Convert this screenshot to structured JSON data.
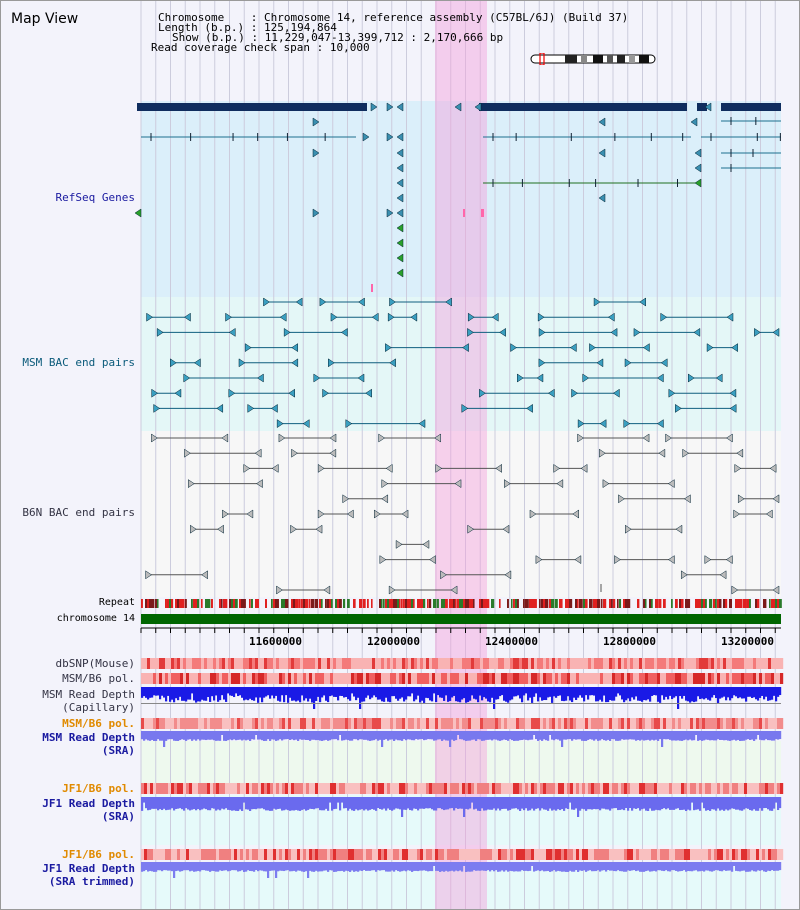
{
  "view_title": "Map View",
  "info": {
    "chromosome_label": "Chromosome",
    "chromosome_value": "Chromosome 14, reference assembly (C57BL/6J) (Build 37)",
    "length_label": "Length (b.p.)",
    "length_value": "125,194,864",
    "show_label": "Show (b.p.)",
    "show_value": "11,229,047-13,399,712 : 2,170,666 bp",
    "coverage_label": "Read coverage check span",
    "coverage_value": "10,000"
  },
  "tracks": {
    "refseq": "RefSeq Genes",
    "msm_bac": "MSM BAC end pairs",
    "b6n_bac": "B6N BAC end pairs",
    "repeat": "Repeat",
    "chromosome": "chromosome 14",
    "dbsnp": "dbSNP(Mouse)",
    "msm_b6_pol": "MSM/B6 pol.",
    "msm_read_depth_cap_1": "MSM Read Depth",
    "msm_read_depth_cap_2": "(Capillary)",
    "msm_b6_pol_sra": "MSM/B6 pol.",
    "msm_read_depth_sra_1": "MSM Read Depth",
    "msm_read_depth_sra_2": "(SRA)",
    "jf1_b6_pol": "JF1/B6 pol.",
    "jf1_read_depth_1": "JF1 Read Depth",
    "jf1_read_depth_2": "(SRA)",
    "jf1_b6_pol_2": "JF1/B6 pol.",
    "jf1_read_depth_trim_1": "JF1 Read Depth",
    "jf1_read_depth_trim_2": "(SRA trimmed)"
  },
  "axis_ticks": [
    "11600000",
    "12000000",
    "12400000",
    "12800000",
    "13200000"
  ],
  "colors": {
    "refseq_bg": "#dbeffa",
    "msm_bg": "#e4f7f7",
    "b6n_bg": "#f5f5f5",
    "highlight": "#f7d2ee",
    "gene_bar": "#0f2d5e",
    "chromosome_bar": "#006600",
    "snp_red": "#f08080",
    "depth_blue": "#1f1fe6",
    "depth_light": "#7b7bf0"
  }
}
